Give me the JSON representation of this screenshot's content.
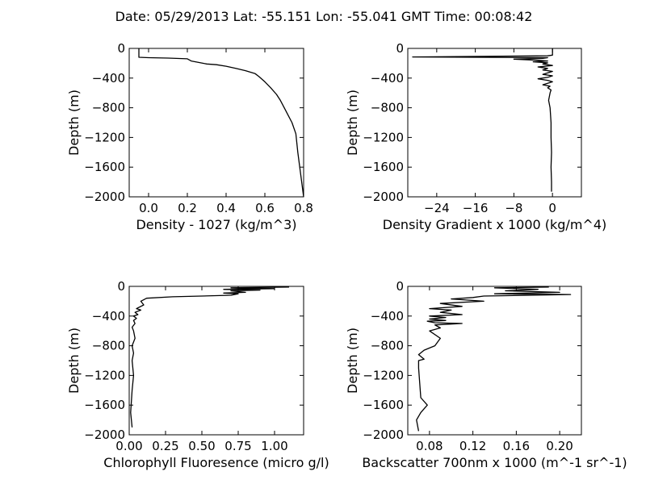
{
  "title": "Date: 05/29/2013  Lat:  -55.151 Lon:  -55.041  GMT Time: 00:08:42",
  "chart_data": [
    {
      "type": "line",
      "xlabel": "Density - 1027 (kg/m^3)",
      "ylabel": "Depth (m)",
      "xlim": [
        -0.1,
        0.8
      ],
      "ylim": [
        -2000,
        0
      ],
      "xticks": [
        0.0,
        0.2,
        0.4,
        0.6,
        0.8
      ],
      "xtick_labels": [
        "0.0",
        "0.2",
        "0.4",
        "0.6",
        "0.8"
      ],
      "yticks": [
        0,
        -400,
        -800,
        -1200,
        -1600,
        -2000
      ],
      "ytick_labels": [
        "0",
        "−400",
        "−800",
        "−1200",
        "−1600",
        "−2000"
      ],
      "grid": false,
      "series": [
        {
          "x": [
            -0.05,
            -0.05,
            -0.05,
            0.0,
            0.1,
            0.2,
            0.22,
            0.28,
            0.3,
            0.35,
            0.4,
            0.45,
            0.5,
            0.55,
            0.57,
            0.6,
            0.63,
            0.66,
            0.68,
            0.7,
            0.72,
            0.74,
            0.76,
            0.77,
            0.78,
            0.79,
            0.8
          ],
          "y": [
            0,
            -50,
            -120,
            -125,
            -130,
            -140,
            -170,
            -200,
            -210,
            -220,
            -240,
            -270,
            -300,
            -340,
            -380,
            -450,
            -530,
            -620,
            -700,
            -800,
            -900,
            -1000,
            -1150,
            -1400,
            -1600,
            -1800,
            -2000
          ]
        }
      ]
    },
    {
      "type": "line",
      "xlabel": "Density Gradient x 1000 (kg/m^4)",
      "ylabel": "Depth (m)",
      "xlim": [
        -30,
        6
      ],
      "ylim": [
        -2000,
        0
      ],
      "xticks": [
        -24,
        -16,
        -8,
        0
      ],
      "xtick_labels": [
        "−24",
        "−16",
        "−8",
        "0"
      ],
      "yticks": [
        0,
        -400,
        -800,
        -1200,
        -1600,
        -2000
      ],
      "ytick_labels": [
        "0",
        "−400",
        "−800",
        "−1200",
        "−1600",
        "−2000"
      ],
      "grid": false,
      "series": [
        {
          "x": [
            0,
            0,
            -1,
            -29,
            -1,
            -2,
            -8,
            -3,
            -1,
            -4,
            -1,
            -2,
            0,
            -3,
            -1,
            -2,
            0,
            -1,
            -2,
            0,
            -1,
            -3,
            -1,
            0,
            -1,
            -2,
            -0.5,
            -1,
            -0.3,
            -0.5,
            -0.8,
            -0.5,
            -0.3,
            -0.3,
            -0.2,
            -0.3,
            -0.2,
            -0.2
          ],
          "y": [
            0,
            -90,
            -100,
            -115,
            -125,
            -135,
            -145,
            -160,
            -170,
            -180,
            -195,
            -210,
            -230,
            -250,
            -270,
            -290,
            -310,
            -330,
            -350,
            -370,
            -390,
            -410,
            -430,
            -450,
            -470,
            -490,
            -510,
            -530,
            -560,
            -600,
            -700,
            -800,
            -1000,
            -1200,
            -1400,
            -1600,
            -1800,
            -1930
          ]
        }
      ]
    },
    {
      "type": "line",
      "xlabel": "Chlorophyll Fluoresence (micro g/l)",
      "ylabel": "Depth (m)",
      "xlim": [
        0,
        1.2
      ],
      "ylim": [
        -2000,
        0
      ],
      "xticks": [
        0,
        0.25,
        0.5,
        0.75,
        1.0
      ],
      "xtick_labels": [
        "0.00",
        "0.25",
        "0.50",
        "0.75",
        "1.00"
      ],
      "yticks": [
        0,
        -400,
        -800,
        -1200,
        -1600,
        -2000
      ],
      "ytick_labels": [
        "0",
        "−400",
        "−800",
        "−1200",
        "−1600",
        "−2000"
      ],
      "grid": false,
      "series": [
        {
          "x": [
            1.1,
            0.7,
            1.0,
            0.65,
            0.9,
            0.7,
            0.8,
            0.65,
            0.75,
            0.7,
            0.5,
            0.3,
            0.12,
            0.08,
            0.1,
            0.05,
            0.08,
            0.04,
            0.06,
            0.03,
            0.05,
            0.03,
            0.04,
            0.02,
            0.03,
            0.04,
            0.02,
            0.03,
            0.02,
            0.03,
            0.02,
            0.01,
            0.02
          ],
          "y": [
            -10,
            -20,
            -30,
            -40,
            -50,
            -60,
            -80,
            -90,
            -100,
            -120,
            -130,
            -140,
            -160,
            -200,
            -250,
            -300,
            -320,
            -350,
            -380,
            -400,
            -430,
            -460,
            -500,
            -550,
            -600,
            -700,
            -800,
            -900,
            -1000,
            -1200,
            -1400,
            -1700,
            -1900
          ]
        }
      ]
    },
    {
      "type": "line",
      "xlabel": "Backscatter 700nm x 1000 (m^-1 sr^-1)",
      "ylabel": "Depth (m)",
      "xlim": [
        0.06,
        0.22
      ],
      "ylim": [
        -2000,
        0
      ],
      "xticks": [
        0.08,
        0.12,
        0.16,
        0.2
      ],
      "xtick_labels": [
        "0.08",
        "0.12",
        "0.16",
        "0.20"
      ],
      "yticks": [
        0,
        -400,
        -800,
        -1200,
        -1600,
        -2000
      ],
      "ytick_labels": [
        "0",
        "−400",
        "−800",
        "−1200",
        "−1600",
        "−2000"
      ],
      "grid": false,
      "series": [
        {
          "x": [
            0.19,
            0.14,
            0.18,
            0.15,
            0.2,
            0.14,
            0.21,
            0.13,
            0.12,
            0.1,
            0.13,
            0.09,
            0.11,
            0.08,
            0.1,
            0.09,
            0.11,
            0.08,
            0.095,
            0.08,
            0.095,
            0.078,
            0.085,
            0.11,
            0.085,
            0.09,
            0.08,
            0.09,
            0.085,
            0.075,
            0.07,
            0.075,
            0.07,
            0.07,
            0.072,
            0.078,
            0.072,
            0.068,
            0.07
          ],
          "y": [
            -10,
            -20,
            -40,
            -60,
            -80,
            -100,
            -110,
            -130,
            -150,
            -170,
            -200,
            -230,
            -270,
            -300,
            -320,
            -350,
            -380,
            -400,
            -420,
            -440,
            -460,
            -470,
            -490,
            -500,
            -520,
            -560,
            -600,
            -700,
            -800,
            -860,
            -920,
            -980,
            -1000,
            -1100,
            -1500,
            -1600,
            -1700,
            -1800,
            -1950
          ]
        }
      ]
    }
  ]
}
